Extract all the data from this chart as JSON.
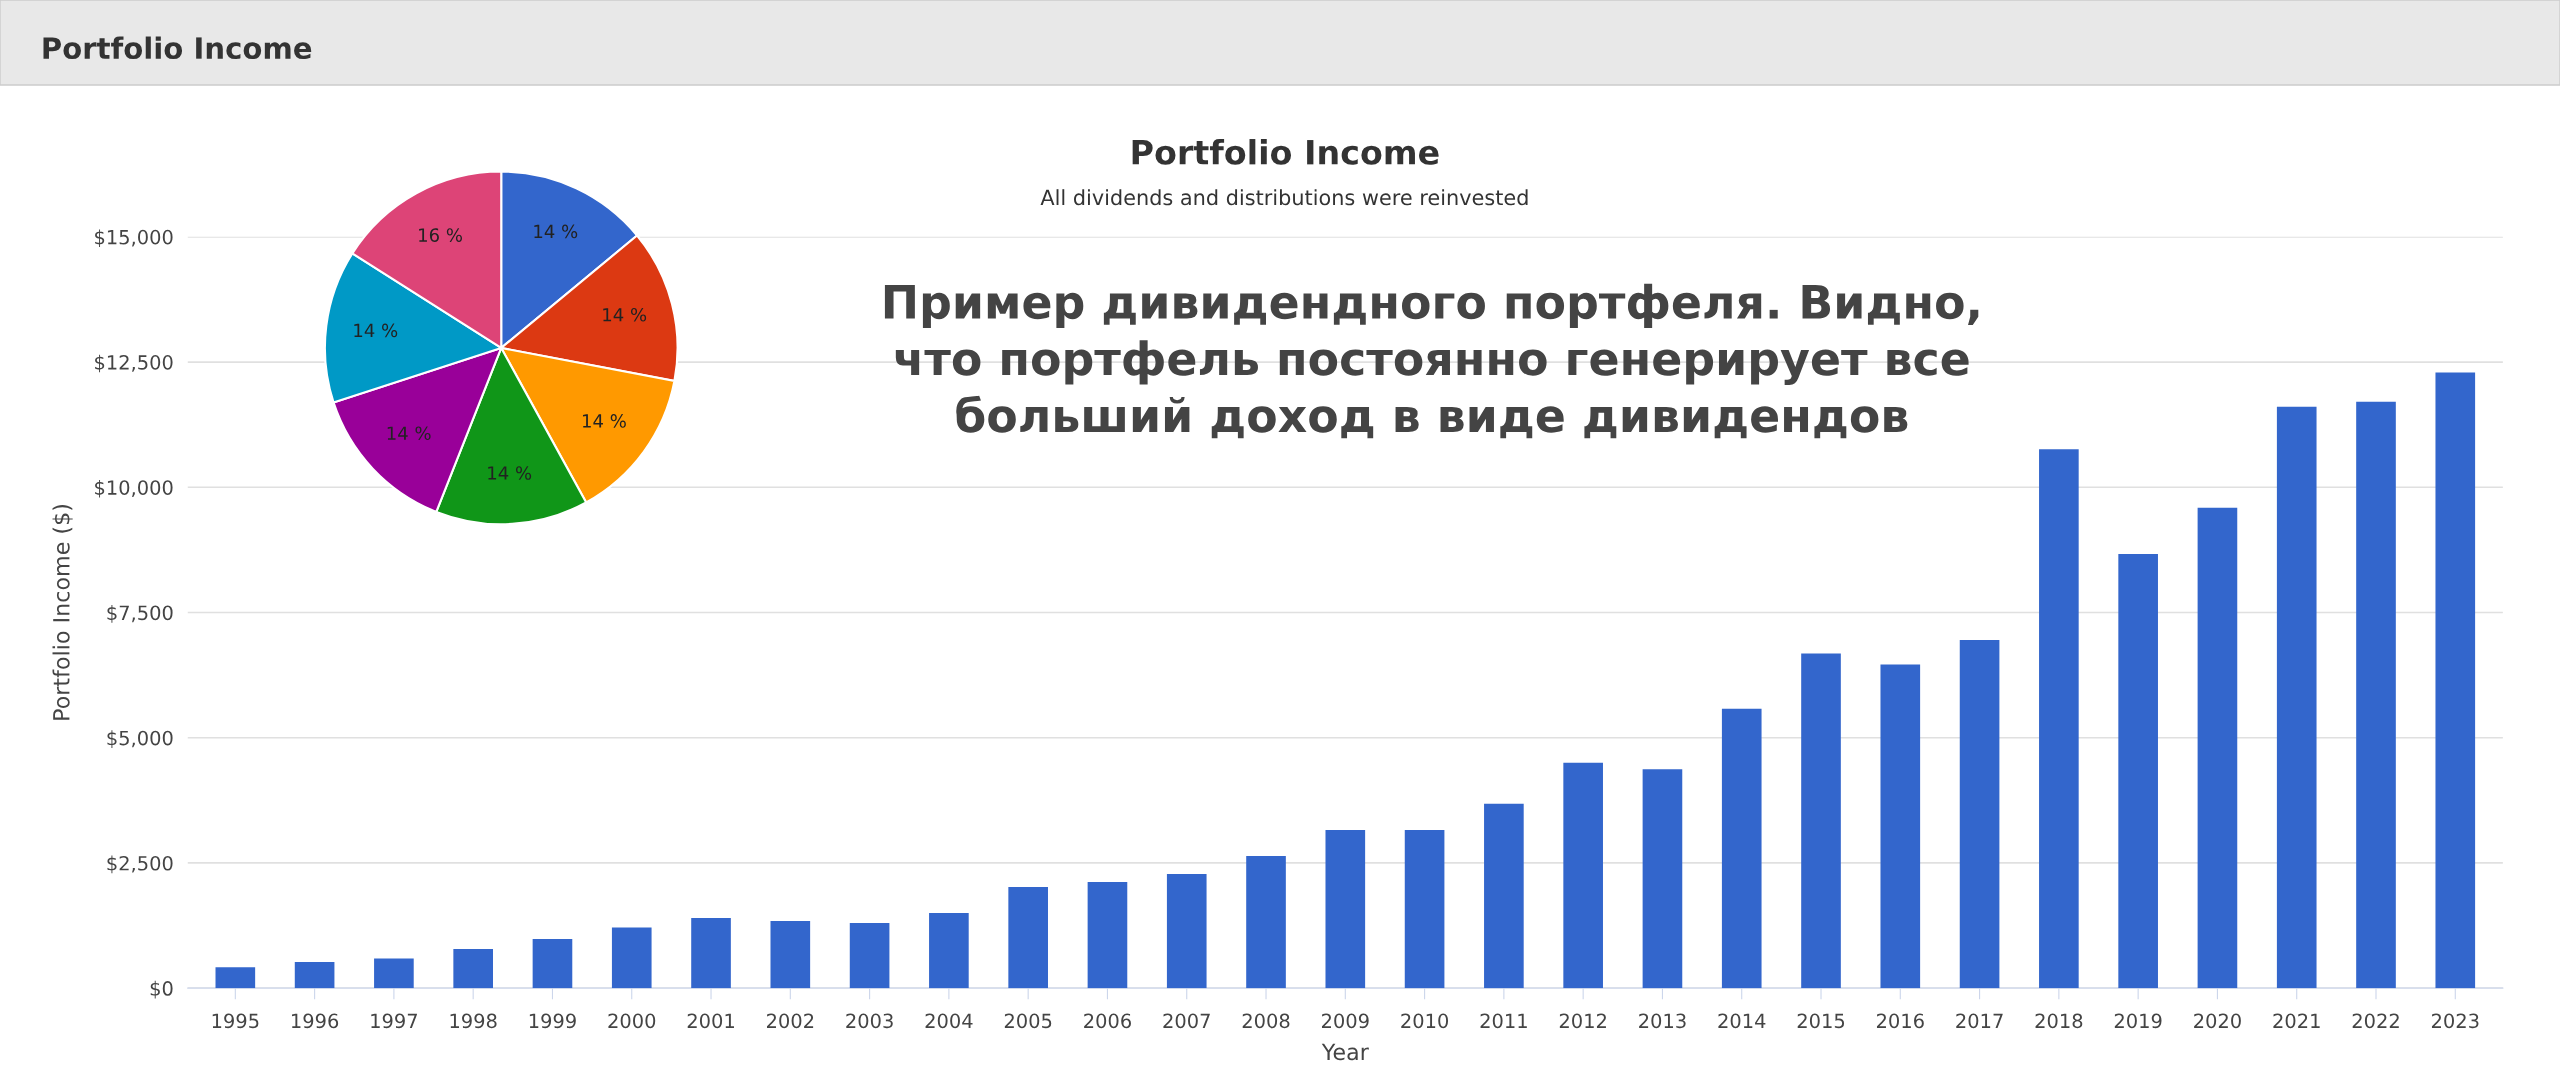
{
  "chart_data": [
    {
      "type": "bar",
      "title": "Portfolio Income",
      "subtitle": "All dividends and distributions were reinvested",
      "xlabel": "Year",
      "ylabel": "Portfolio Income ($)",
      "annotations": [
        "Portfolio Income",
        "Пример дивидендного портфеля. Видно,\nчто портфель постоянно генерирует все\nбольший доход в виде дивидендов"
      ],
      "categories": [
        "1995",
        "1996",
        "1997",
        "1998",
        "1999",
        "2000",
        "2001",
        "2002",
        "2003",
        "2004",
        "2005",
        "2006",
        "2007",
        "2008",
        "2009",
        "2010",
        "2011",
        "2012",
        "2013",
        "2014",
        "2015",
        "2016",
        "2017",
        "2018",
        "2019",
        "2020",
        "2021",
        "2022",
        "2023"
      ],
      "values": [
        420,
        520,
        590,
        780,
        980,
        1210,
        1400,
        1340,
        1300,
        1500,
        2020,
        2120,
        2280,
        2640,
        3160,
        3160,
        3680,
        4500,
        4370,
        5580,
        6680,
        6460,
        6950,
        10760,
        8670,
        9590,
        11610,
        11710,
        12290
      ],
      "color": "#3366cc",
      "ylim": [
        0,
        15000
      ],
      "yticks": [
        {
          "value": 0,
          "label": "$0"
        },
        {
          "value": 2500,
          "label": "$2,500"
        },
        {
          "value": 5000,
          "label": "$5,000"
        },
        {
          "value": 7500,
          "label": "$7,500"
        },
        {
          "value": 10000,
          "label": "$10,000"
        },
        {
          "value": 12500,
          "label": "$12,500"
        },
        {
          "value": 15000,
          "label": "$15,000"
        }
      ],
      "grid": "y",
      "legend": false
    },
    {
      "type": "pie",
      "categories": [
        null,
        null,
        null,
        null,
        null,
        null,
        null
      ],
      "values": [
        14,
        14,
        14,
        14,
        14,
        14,
        16
      ],
      "value_labels": [
        "14 %",
        "14 %",
        "14 %",
        "14 %",
        "14 %",
        "14 %",
        "16 %"
      ],
      "colors": [
        "#3366cc",
        "#dc3912",
        "#ff9900",
        "#109618",
        "#990099",
        "#0099c6",
        "#dd4477"
      ],
      "legend": false
    }
  ]
}
